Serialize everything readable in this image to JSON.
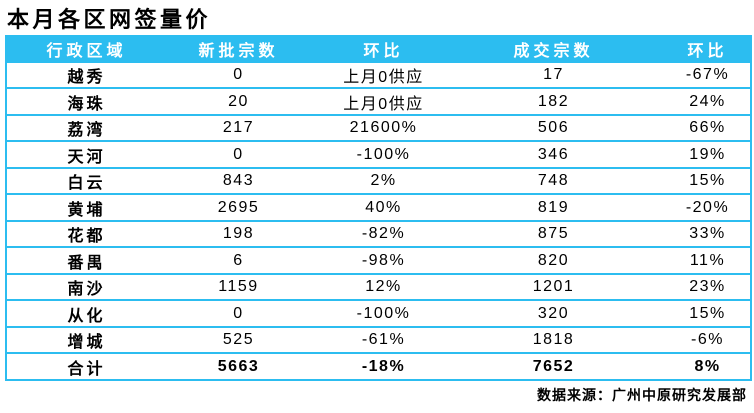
{
  "title": "本月各区网签量价",
  "colors": {
    "accent": "#2CBDF0",
    "header_text": "#FFFFFF",
    "body_text": "#000000",
    "title_text": "#000000"
  },
  "chart_data": {
    "type": "table",
    "title": "本月各区网签量价",
    "columns": [
      "行政区域",
      "新批宗数",
      "环比",
      "成交宗数",
      "环比"
    ],
    "rows": [
      [
        "越秀",
        "0",
        "上月0供应",
        "17",
        "-67%"
      ],
      [
        "海珠",
        "20",
        "上月0供应",
        "182",
        "24%"
      ],
      [
        "荔湾",
        "217",
        "21600%",
        "506",
        "66%"
      ],
      [
        "天河",
        "0",
        "-100%",
        "346",
        "19%"
      ],
      [
        "白云",
        "843",
        "2%",
        "748",
        "15%"
      ],
      [
        "黄埔",
        "2695",
        "40%",
        "819",
        "-20%"
      ],
      [
        "花都",
        "198",
        "-82%",
        "875",
        "33%"
      ],
      [
        "番禺",
        "6",
        "-98%",
        "820",
        "11%"
      ],
      [
        "南沙",
        "1159",
        "12%",
        "1201",
        "23%"
      ],
      [
        "从化",
        "0",
        "-100%",
        "320",
        "15%"
      ],
      [
        "增城",
        "525",
        "-61%",
        "1818",
        "-6%"
      ]
    ],
    "total_row": [
      "合计",
      "5663",
      "-18%",
      "7652",
      "8%"
    ],
    "layout": {
      "grid": "horizontal-rules-only",
      "header_background": "#2CBDF0"
    }
  },
  "footer": {
    "source": "数据来源：广州中原研究发展部"
  }
}
